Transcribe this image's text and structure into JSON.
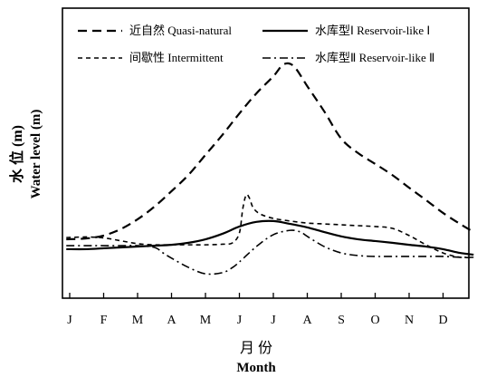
{
  "chart_data": {
    "type": "line",
    "x_ticks": [
      "J",
      "F",
      "M",
      "A",
      "M",
      "J",
      "J",
      "A",
      "S",
      "O",
      "N",
      "D"
    ],
    "ylabel_cn": "水 位 (m)",
    "ylabel_en": "Water level (m)",
    "xlabel_cn": "月 份",
    "xlabel_en": "Month",
    "grid": false,
    "legend_position": "top",
    "ylim": [
      0,
      100
    ],
    "xlim": [
      0,
      11.9
    ],
    "series": [
      {
        "name": "近自然 Quasi-natural",
        "style": "longdash",
        "x": [
          -0.1,
          0.5,
          1.0,
          1.5,
          2.0,
          2.5,
          3.0,
          3.5,
          4.0,
          4.5,
          5.0,
          5.5,
          6.0,
          6.3,
          6.6,
          7.0,
          7.5,
          8.0,
          8.5,
          9.0,
          9.5,
          10.0,
          10.5,
          11.0,
          11.5,
          11.9
        ],
        "values": [
          20.3,
          20.6,
          21.6,
          23.8,
          27.2,
          31.6,
          36.9,
          42.5,
          49.4,
          56.3,
          63.7,
          70.6,
          76.5,
          80.6,
          80.0,
          73.1,
          64.4,
          55.0,
          50.0,
          46.3,
          42.5,
          38.1,
          33.8,
          29.4,
          25.6,
          22.8
        ]
      },
      {
        "name": "间歇性 Intermittent",
        "style": "dash",
        "x": [
          -0.1,
          0.5,
          1.0,
          1.5,
          2.0,
          2.5,
          3.0,
          3.5,
          4.0,
          4.5,
          4.8,
          5.0,
          5.1,
          5.2,
          5.3,
          5.4,
          5.6,
          6.0,
          6.5,
          7.0,
          7.5,
          8.0,
          8.5,
          9.0,
          9.5,
          10.0,
          10.5,
          11.0,
          11.5,
          11.9
        ],
        "values": [
          20.9,
          21.1,
          20.8,
          19.8,
          18.8,
          18.4,
          18.4,
          18.4,
          18.4,
          18.6,
          19.1,
          22.5,
          30.9,
          35.6,
          34.4,
          31.3,
          29.1,
          27.5,
          26.6,
          25.9,
          25.6,
          25.3,
          25.0,
          24.7,
          24.1,
          21.6,
          18.4,
          15.6,
          14.1,
          14.1
        ]
      },
      {
        "name": "水库型Ⅰ Reservoir-like Ⅰ",
        "style": "solid",
        "x": [
          -0.1,
          0.5,
          1.0,
          1.5,
          2.0,
          2.5,
          3.0,
          3.5,
          4.0,
          4.5,
          5.0,
          5.5,
          6.0,
          6.5,
          7.0,
          7.5,
          8.0,
          8.5,
          9.0,
          9.5,
          10.0,
          10.5,
          11.0,
          11.5,
          11.9
        ],
        "values": [
          16.9,
          16.9,
          17.2,
          17.5,
          17.8,
          18.1,
          18.4,
          19.1,
          20.3,
          22.2,
          24.7,
          26.3,
          26.6,
          25.6,
          24.4,
          22.8,
          21.3,
          20.3,
          19.7,
          19.1,
          18.4,
          17.8,
          16.9,
          15.6,
          15.0
        ]
      },
      {
        "name": "水库型Ⅱ Reservoir-like Ⅱ",
        "style": "dashdot",
        "x": [
          -0.1,
          0.5,
          1.0,
          1.5,
          2.0,
          2.5,
          2.75,
          3.0,
          3.5,
          4.0,
          4.5,
          4.8,
          5.0,
          5.5,
          6.0,
          6.5,
          6.8,
          7.0,
          7.5,
          8.0,
          8.5,
          9.0,
          9.5,
          10.0,
          10.5,
          11.0,
          11.5,
          11.9
        ],
        "values": [
          18.1,
          18.1,
          18.1,
          18.1,
          18.1,
          17.5,
          15.6,
          13.8,
          10.6,
          8.4,
          8.8,
          10.6,
          12.5,
          17.8,
          21.9,
          23.4,
          22.8,
          21.3,
          17.8,
          15.6,
          14.7,
          14.4,
          14.4,
          14.4,
          14.4,
          14.4,
          14.1,
          14.1
        ]
      }
    ]
  },
  "legend": {
    "quasi_natural": "近自然 Quasi-natural",
    "reservoir_1": "水库型Ⅰ Reservoir-like Ⅰ",
    "intermittent": "间歇性 Intermittent",
    "reservoir_2": "水库型Ⅱ Reservoir-like Ⅱ"
  }
}
